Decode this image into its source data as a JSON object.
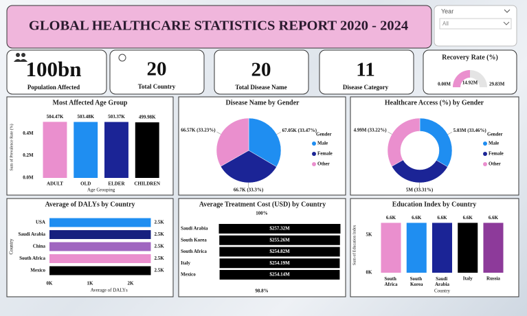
{
  "header": {
    "title": "GLOBAL HEALTHCARE STATISTICS REPORT 2020 - 2024"
  },
  "slicer": {
    "label": "Year",
    "value": "All"
  },
  "cards": [
    {
      "value": "100bn",
      "title": "Population Affected"
    },
    {
      "value": 20,
      "title": "Total Country"
    },
    {
      "value": 20,
      "title": "Total Disease Name"
    },
    {
      "value": 11,
      "title": "Disease Category"
    }
  ],
  "chart_data": [
    {
      "type": "gauge",
      "title": "Recovery Rate (%)",
      "values": [
        14.92
      ],
      "value_labels": [
        "14.92M"
      ],
      "ylim": [
        0,
        29.83
      ],
      "yticks": [
        {
          "value": 0,
          "label": "0.00M"
        },
        {
          "value": 29.83,
          "label": "29.83M"
        }
      ],
      "color": "#ea8fce",
      "track_color": "#e4e4e4"
    },
    {
      "type": "bar",
      "title": "Most Affected Age Group",
      "categories": [
        "ADULT",
        "OLD",
        "ELDER",
        "CHILDREN"
      ],
      "values": [
        0.50447,
        0.50348,
        0.50337,
        0.49998
      ],
      "value_labels": [
        "504.47K",
        "503.48K",
        "503.37K",
        "499.98K"
      ],
      "colors": [
        "#ea8fce",
        "#1f8ef1",
        "#1b2496",
        "#000000"
      ],
      "ylim": [
        0,
        0.55
      ],
      "yticks": [
        {
          "value": 0,
          "label": "0.0M"
        },
        {
          "value": 0.2,
          "label": "0.2M"
        },
        {
          "value": 0.4,
          "label": "0.4M"
        }
      ],
      "xlabel": "Age Grouping",
      "ylabel": "Sum of Prevalence Rate (%)"
    },
    {
      "type": "pie",
      "title": "Disease Name by Gender",
      "categories": [
        "Male",
        "Female",
        "Other"
      ],
      "values": [
        67.05,
        66.7,
        66.57
      ],
      "value_labels": [
        "67.05K (33.47%)",
        "66.7K (33.3%)",
        "66.57K (33.23%)"
      ],
      "colors": [
        "#1f8ef1",
        "#1b2496",
        "#ea8fce"
      ],
      "legend_title": "Gender",
      "legend": "right"
    },
    {
      "type": "donut",
      "title": "Healthcare Access (%) by Gender",
      "categories": [
        "Male",
        "Female",
        "Other"
      ],
      "values": [
        5.03,
        5,
        4.99
      ],
      "value_labels": [
        "5.03M (33.46%)",
        "5M (33.31%)",
        "4.99M (33.22%)"
      ],
      "colors": [
        "#1f8ef1",
        "#1b2496",
        "#ea8fce"
      ],
      "legend_title": "Gender",
      "legend": "right"
    },
    {
      "type": "barh",
      "title": "Average of DALYs by Country",
      "categories": [
        "USA",
        "Saudi Arabia",
        "China",
        "South Africa",
        "Mexico"
      ],
      "values": [
        2.5,
        2.5,
        2.5,
        2.5,
        2.5
      ],
      "value_labels": [
        "2.5K",
        "2.5K",
        "2.5K",
        "2.5K",
        "2.5K"
      ],
      "colors": [
        "#1f8ef1",
        "#16207f",
        "#a066c0",
        "#ea8fce",
        "#000000"
      ],
      "xlim": [
        0,
        2.6
      ],
      "xticks": [
        {
          "value": 0,
          "label": "0K"
        },
        {
          "value": 1,
          "label": "1K"
        },
        {
          "value": 2,
          "label": "2K"
        }
      ],
      "xlabel": "Average of DALYs",
      "ylabel": "Country"
    },
    {
      "type": "funnel",
      "title": "Average Treatment Cost (USD) by Country",
      "categories": [
        "Saudi Arabia",
        "South Korea",
        "South Africa",
        "Italy",
        "Mexico"
      ],
      "values": [
        257.32,
        255.26,
        254.82,
        254.19,
        254.14
      ],
      "value_labels": [
        "$257.32M",
        "$255.26M",
        "$254.82M",
        "$254.19M",
        "$254.14M"
      ],
      "color": "#000000",
      "percent_labels": [
        "100%",
        "98.8%"
      ]
    },
    {
      "type": "bar",
      "title": "Education Index by Country",
      "categories": [
        "South Africa",
        "South Korea",
        "Saudi Arabia",
        "Italy",
        "Russia"
      ],
      "values": [
        6.6,
        6.6,
        6.6,
        6.6,
        6.6
      ],
      "value_labels": [
        "6.6K",
        "6.6K",
        "6.6K",
        "6.6K",
        "6.6K"
      ],
      "colors": [
        "#ea8fce",
        "#1f8ef1",
        "#1b2496",
        "#000000",
        "#8d3a9a"
      ],
      "ylim": [
        0,
        7.3
      ],
      "yticks": [
        {
          "value": 0,
          "label": "0K"
        },
        {
          "value": 5,
          "label": "5K"
        }
      ],
      "xlabel": "Country",
      "ylabel": "Sum of Education Index"
    }
  ]
}
